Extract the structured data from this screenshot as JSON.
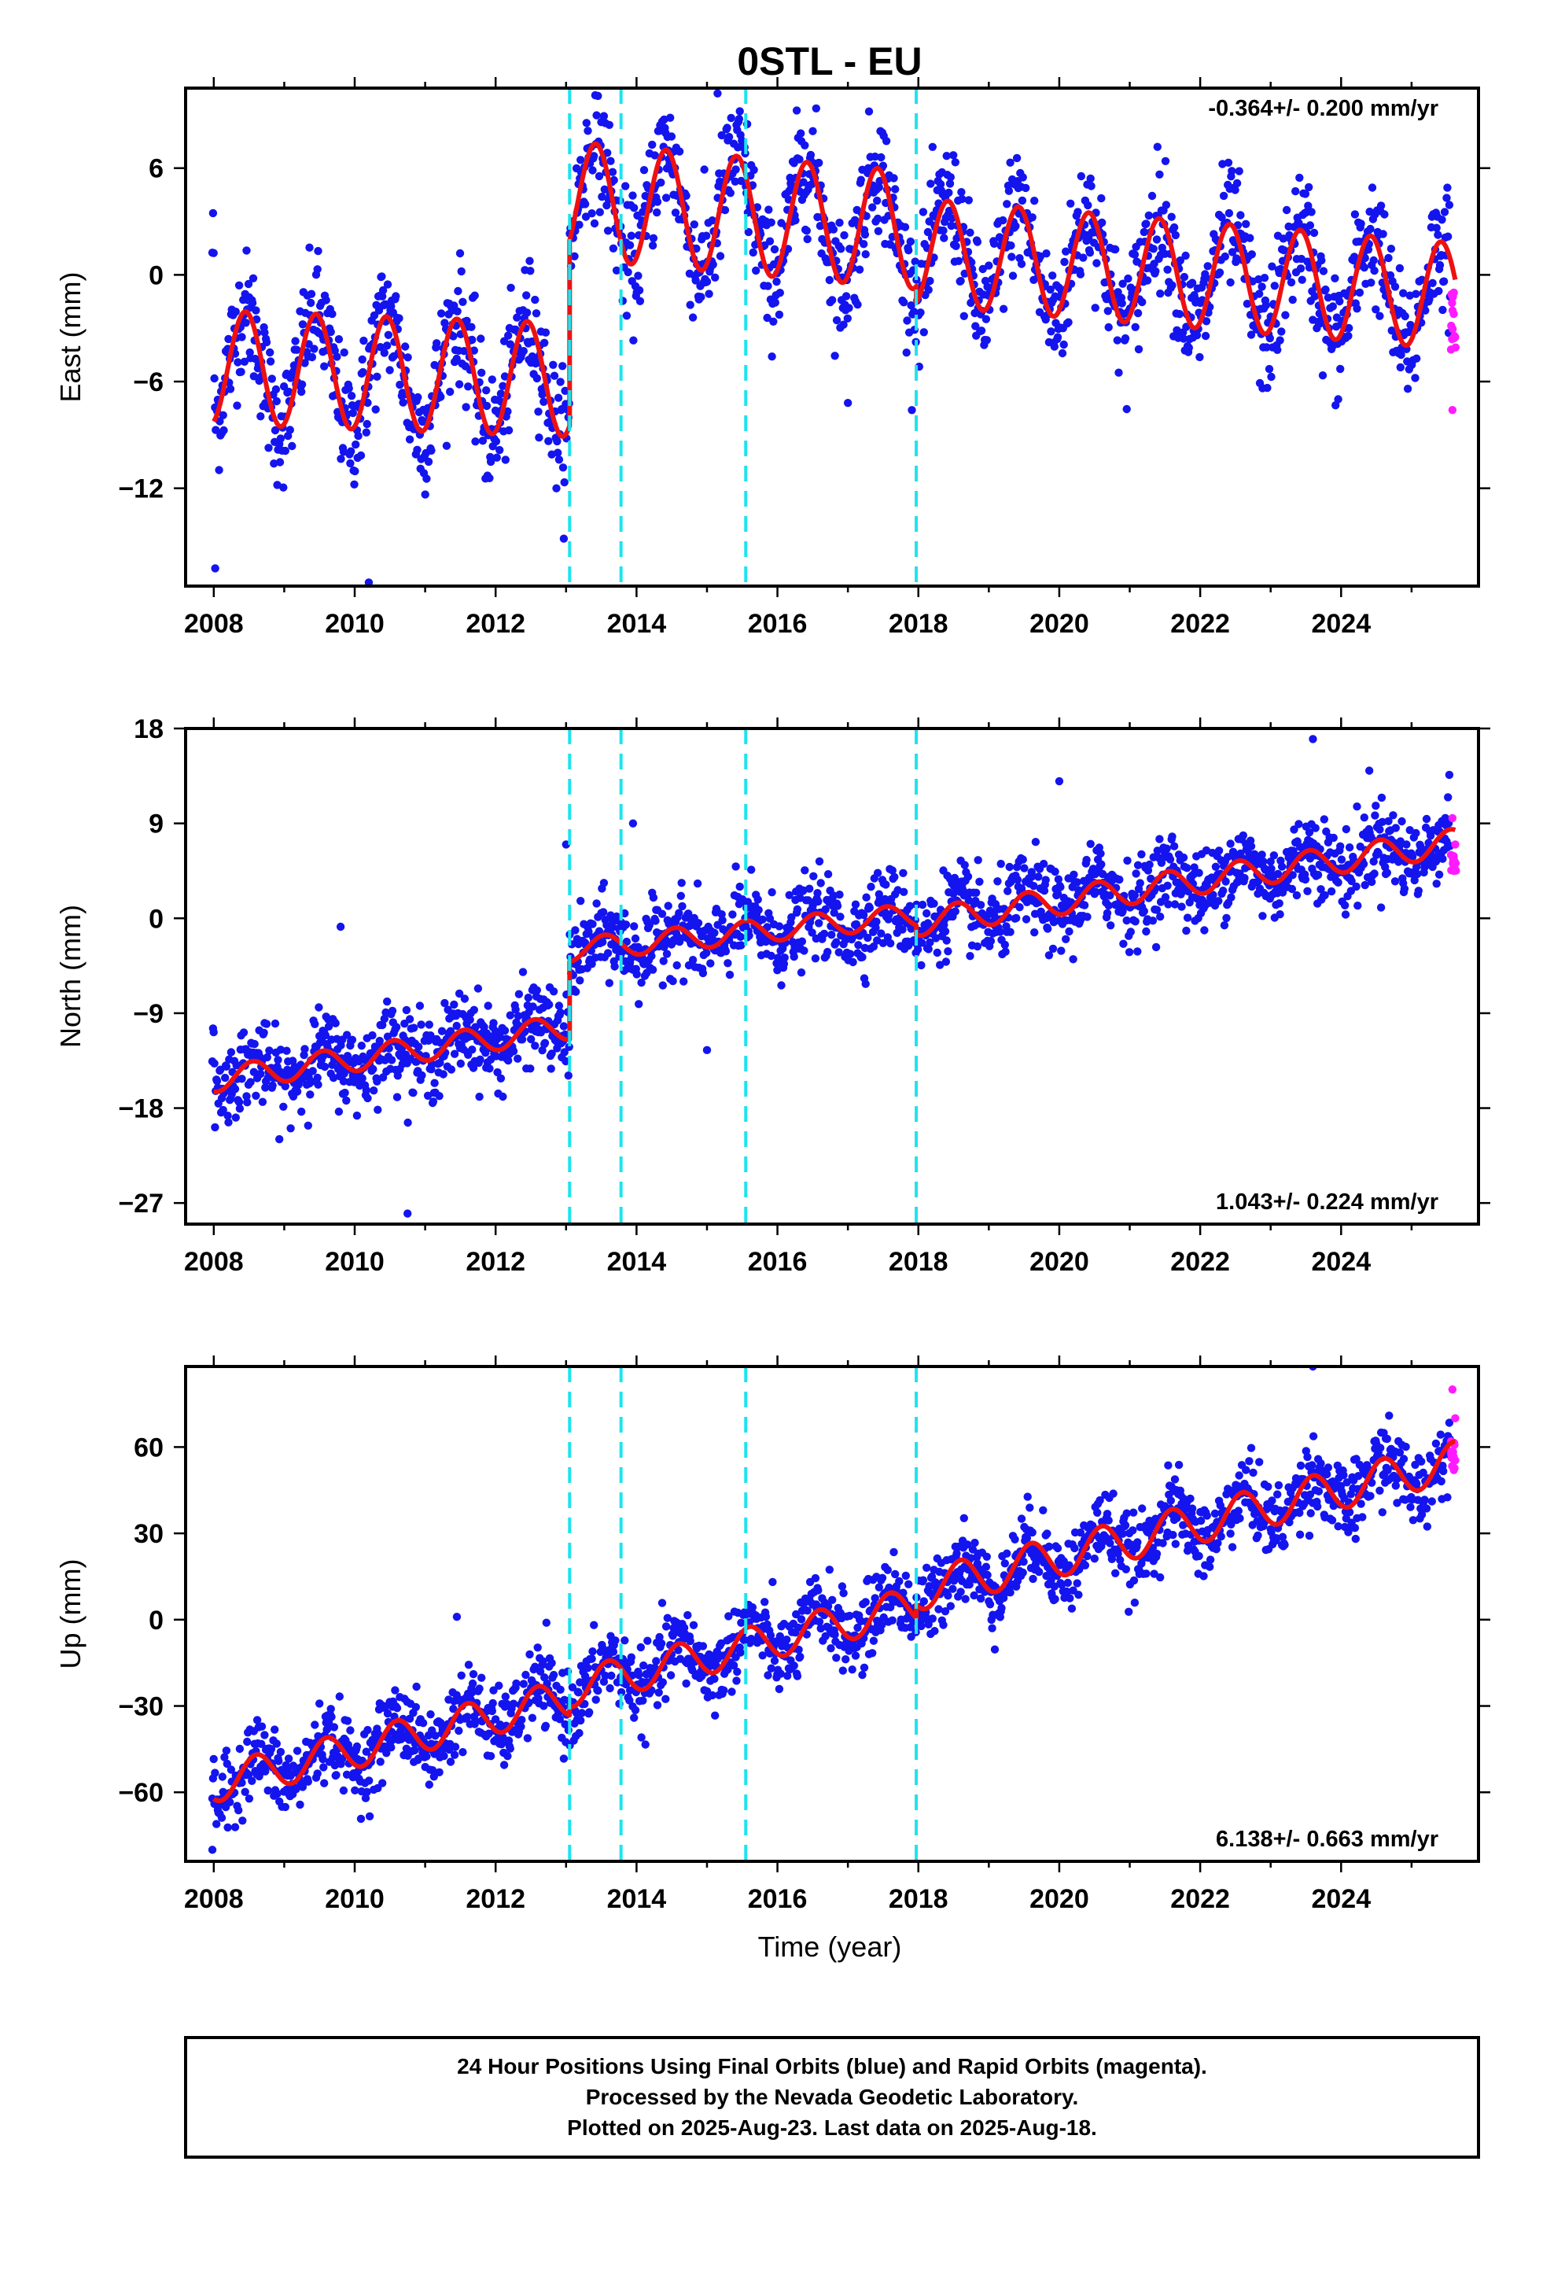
{
  "title": "0STL - EU",
  "x_axis_title": "Time (year)",
  "footer": {
    "line1": "24 Hour Positions Using Final Orbits (blue) and Rapid Orbits (magenta).",
    "line2": "Processed by the Nevada Geodetic Laboratory.",
    "line3": "Plotted on 2025-Aug-23. Last data on 2025-Aug-18."
  },
  "colors": {
    "final_orbits": "#1414ee",
    "rapid_orbits": "#ff1bff",
    "model": "#ee1111",
    "equipment_change": "#1ee3ee"
  },
  "chart_data": [
    {
      "type": "scatter",
      "panel": "east",
      "ylabel": "East (mm)",
      "rate_text": "-0.364+/- 0.200 mm/yr",
      "xlim": [
        2007.6,
        2025.95
      ],
      "ylim": [
        -17.5,
        10.5
      ],
      "xticks": [
        2008,
        2010,
        2012,
        2014,
        2016,
        2018,
        2020,
        2022,
        2024
      ],
      "yticks": [
        6,
        0,
        -6,
        -12
      ],
      "grid": false,
      "vertical_lines": [
        2013.05,
        2013.78,
        2015.55,
        2017.97
      ],
      "model": {
        "segments": [
          {
            "x_start": 2008.0,
            "x_end": 2013.05,
            "trend_start": -5.2,
            "trend_end": -5.9,
            "annual_amplitude": 3.2,
            "annual_peak": 2008.45
          },
          {
            "x_start": 2013.05,
            "x_end": 2017.97,
            "trend_start": 4.2,
            "trend_end": 2.5,
            "annual_amplitude": 3.3,
            "annual_peak": 2014.42
          },
          {
            "x_start": 2017.97,
            "x_end": 2025.62,
            "trend_start": 1.3,
            "trend_end": -1.2,
            "annual_amplitude": 3.0,
            "annual_peak": 2018.42
          }
        ]
      },
      "final_orbits": {
        "x_range": [
          2007.98,
          2025.55
        ],
        "scatter_sd": 1.7
      },
      "rapid_orbits": {
        "x": [
          2025.56,
          2025.58,
          2025.6,
          2025.62
        ],
        "y": [
          -4.2,
          -7.6,
          -1.0,
          -3.5
        ]
      },
      "outliers": [
        [
          2008.02,
          -16.5
        ],
        [
          2010.2,
          -17.3
        ],
        [
          2015.15,
          10.2
        ],
        [
          2017.0,
          -7.2
        ]
      ]
    },
    {
      "type": "scatter",
      "panel": "north",
      "ylabel": "North (mm)",
      "rate_text": "1.043+/- 0.224 mm/yr",
      "xlim": [
        2007.6,
        2025.95
      ],
      "ylim": [
        -29,
        18
      ],
      "xticks": [
        2008,
        2010,
        2012,
        2014,
        2016,
        2018,
        2020,
        2022,
        2024
      ],
      "yticks": [
        18,
        9,
        0,
        -9,
        -18,
        -27
      ],
      "grid": false,
      "vertical_lines": [
        2013.05,
        2013.78,
        2015.55,
        2017.97
      ],
      "model": {
        "segments": [
          {
            "x_start": 2008.0,
            "x_end": 2013.05,
            "trend_start": -15.3,
            "trend_end": -10.3,
            "annual_amplitude": 1.2,
            "annual_peak": 2008.55
          },
          {
            "x_start": 2013.05,
            "x_end": 2017.97,
            "trend_start": -3.0,
            "trend_end": 0.3,
            "annual_amplitude": 1.1,
            "annual_peak": 2013.55
          },
          {
            "x_start": 2017.97,
            "x_end": 2025.62,
            "trend_start": -0.4,
            "trend_end": 7.2,
            "annual_amplitude": 1.3,
            "annual_peak": 2018.55
          }
        ]
      },
      "final_orbits": {
        "x_range": [
          2007.98,
          2025.55
        ],
        "scatter_sd": 1.9
      },
      "rapid_orbits": {
        "x": [
          2025.56,
          2025.58,
          2025.6,
          2025.62
        ],
        "y": [
          6.0,
          9.5,
          4.5,
          7.0
        ]
      },
      "outliers": [
        [
          2009.8,
          -0.8
        ],
        [
          2010.75,
          -28.0
        ],
        [
          2013.0,
          7.0
        ],
        [
          2013.95,
          9.0
        ],
        [
          2015.0,
          -12.5
        ],
        [
          2020.0,
          13.0
        ],
        [
          2023.6,
          17.0
        ],
        [
          2024.4,
          14.0
        ]
      ]
    },
    {
      "type": "scatter",
      "panel": "up",
      "ylabel": "Up (mm)",
      "rate_text": "6.138+/- 0.663 mm/yr",
      "xlim": [
        2007.6,
        2025.95
      ],
      "ylim": [
        -84,
        88
      ],
      "xticks": [
        2008,
        2010,
        2012,
        2014,
        2016,
        2018,
        2020,
        2022,
        2024
      ],
      "yticks": [
        60,
        30,
        0,
        -30,
        -60
      ],
      "grid": false,
      "vertical_lines": [
        2013.05,
        2013.78,
        2015.55,
        2017.97
      ],
      "model": {
        "segments": [
          {
            "x_start": 2008.0,
            "x_end": 2013.05,
            "trend_start": -57,
            "trend_end": -27,
            "annual_amplitude": 6.5,
            "annual_peak": 2008.6
          },
          {
            "x_start": 2013.05,
            "x_end": 2017.97,
            "trend_start": -24,
            "trend_end": 5,
            "annual_amplitude": 6.5,
            "annual_peak": 2013.6
          },
          {
            "x_start": 2017.97,
            "x_end": 2025.62,
            "trend_start": 10,
            "trend_end": 55,
            "annual_amplitude": 7.0,
            "annual_peak": 2018.6
          }
        ]
      },
      "final_orbits": {
        "x_range": [
          2007.98,
          2025.55
        ],
        "scatter_sd": 6.5
      },
      "rapid_orbits": {
        "x": [
          2025.56,
          2025.58,
          2025.6,
          2025.62
        ],
        "y": [
          62,
          80,
          52,
          70
        ]
      },
      "outliers": [
        [
          2011.45,
          1.0
        ],
        [
          2023.6,
          88.0
        ],
        [
          2007.98,
          -80.0
        ]
      ]
    }
  ]
}
